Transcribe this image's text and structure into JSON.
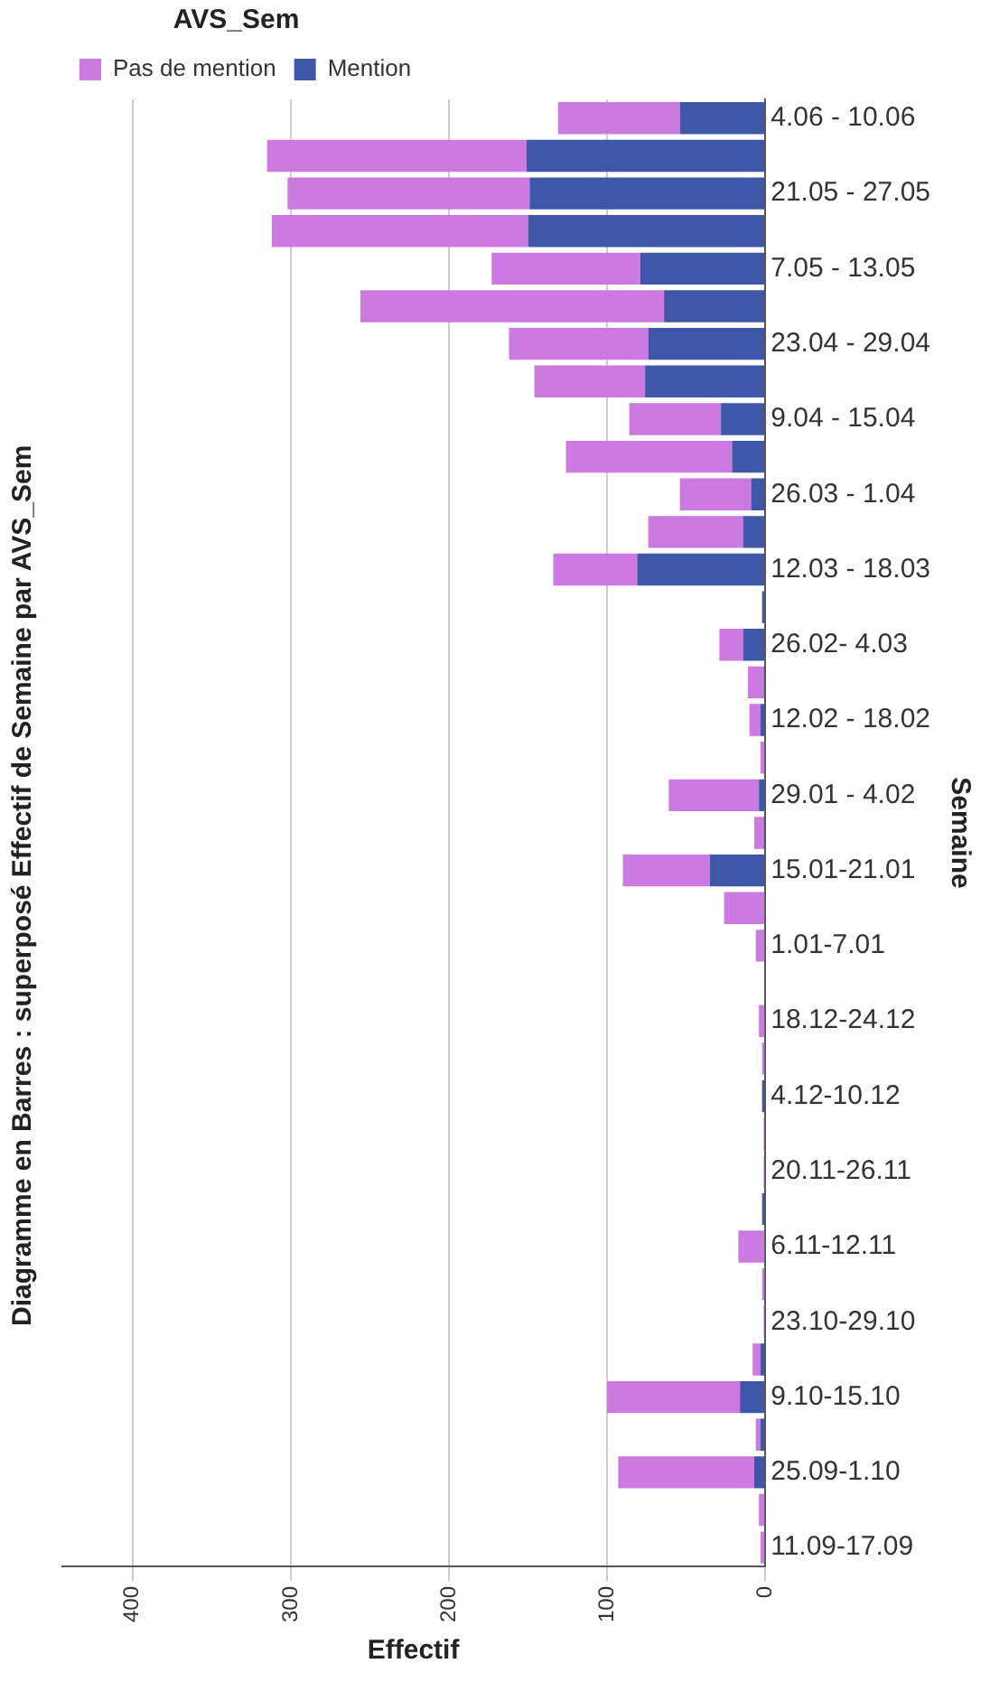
{
  "chart_data": {
    "type": "bar",
    "title": "Diagramme en Barres : superposé Effectif de Semaine par AVS_Sem",
    "xlabel": "Effectif",
    "ylabel": "Semaine",
    "legend_title": "AVS_Sem",
    "orientation": "horizontal",
    "stacked": true,
    "categories": [
      "4.06 - 10.06",
      null,
      "21.05 - 27.05",
      null,
      "7.05 - 13.05",
      null,
      "23.04 - 29.04",
      null,
      "9.04 - 15.04",
      null,
      "26.03 - 1.04",
      null,
      "12.03 - 18.03",
      null,
      "26.02- 4.03",
      null,
      "12.02 - 18.02",
      null,
      "29.01 - 4.02",
      null,
      "15.01-21.01",
      null,
      "1.01-7.01",
      null,
      "18.12-24.12",
      null,
      "4.12-10.12",
      null,
      "20.11-26.11",
      null,
      "6.11-12.11",
      null,
      "23.10-29.10",
      null,
      "9.10-15.10",
      null,
      "25.09-1.10",
      null,
      "11.09-17.09"
    ],
    "series": [
      {
        "name": "Mention",
        "color": "#3f57a8",
        "values": [
          54,
          151,
          149,
          150,
          79,
          64,
          74,
          76,
          28,
          21,
          9,
          14,
          81,
          2,
          14,
          1,
          3,
          0,
          4,
          1,
          35,
          0,
          0,
          0,
          0,
          0,
          2,
          0,
          0,
          2,
          0,
          0,
          0,
          3,
          16,
          3,
          7,
          0,
          0
        ]
      },
      {
        "name": "Pas de mention",
        "color": "#cc7ae2",
        "values": [
          77,
          164,
          153,
          162,
          94,
          192,
          88,
          70,
          58,
          105,
          45,
          60,
          53,
          0,
          15,
          10,
          7,
          3,
          57,
          6,
          55,
          26,
          6,
          0,
          4,
          2,
          0,
          1,
          1,
          0,
          17,
          2,
          1,
          5,
          84,
          3,
          86,
          4,
          3
        ]
      }
    ],
    "xlim": [
      445,
      0
    ],
    "xticks": [
      0,
      100,
      200,
      300,
      400
    ],
    "grid": "x",
    "legend": "top left"
  }
}
